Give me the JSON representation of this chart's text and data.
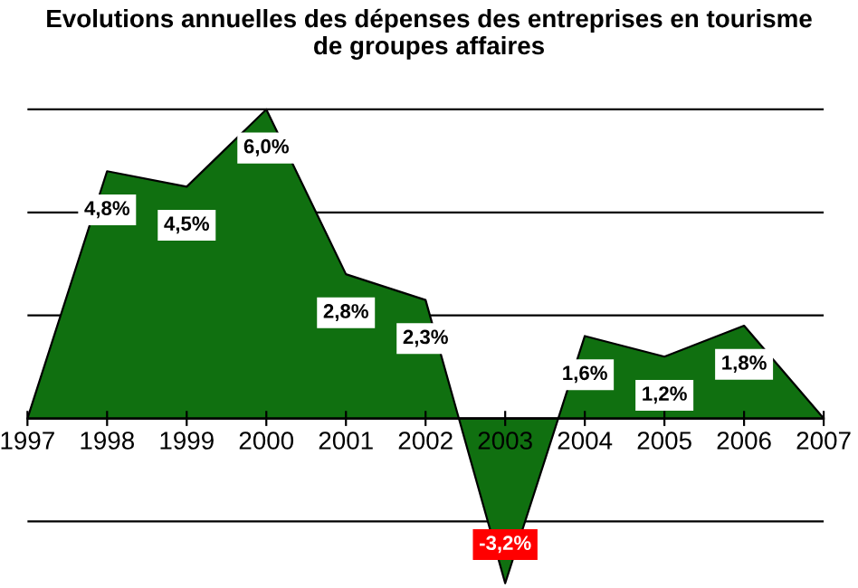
{
  "chart_data": {
    "type": "area",
    "title": "Evolutions annuelles des dépenses des entreprises en tourisme\nde groupes affaires",
    "x": [
      1997,
      1998,
      1999,
      2000,
      2001,
      2002,
      2003,
      2004,
      2005,
      2006,
      2007
    ],
    "series": [
      {
        "color": "#107010",
        "values": [
          0,
          4.8,
          4.5,
          6.0,
          2.8,
          2.3,
          -3.2,
          1.6,
          1.2,
          1.8,
          0
        ],
        "value_labels": [
          null,
          "4,8%",
          "4,5%",
          "6,0%",
          "2,8%",
          "2,3%",
          "-3,2%",
          "1,6%",
          "1,2%",
          "1,8%",
          null
        ]
      }
    ],
    "xlim": [
      1997,
      2007
    ],
    "xticks": [
      1997,
      1998,
      1999,
      2000,
      2001,
      2002,
      2003,
      2004,
      2005,
      2006,
      2007
    ],
    "yticks": [
      {
        "value": -2,
        "label": null
      },
      {
        "value": 0,
        "label": null
      },
      {
        "value": 2,
        "label": null
      },
      {
        "value": 4,
        "label": null
      },
      {
        "value": 6,
        "label": null
      }
    ],
    "grid": "y"
  }
}
